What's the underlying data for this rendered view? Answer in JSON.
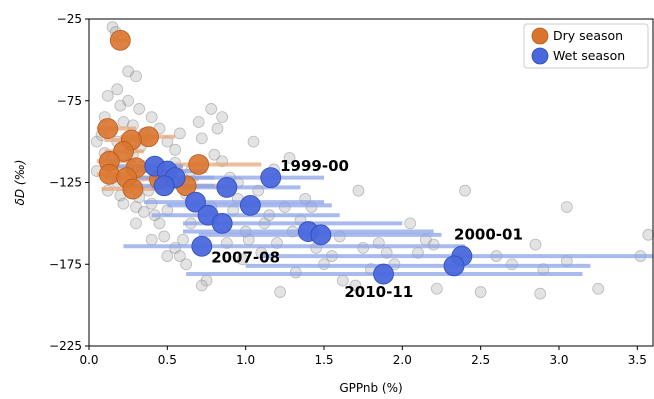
{
  "chart_data": {
    "type": "scatter",
    "xlabel": "GPPnb (%)",
    "ylabel": "δD (‰)",
    "xlim": [
      0.0,
      3.6
    ],
    "ylim": [
      -225,
      -25
    ],
    "xticks": [
      0.0,
      0.5,
      1.0,
      1.5,
      2.0,
      2.5,
      3.0,
      3.5
    ],
    "yticks": [
      -25,
      -75,
      -125,
      -175,
      -225
    ],
    "xtick_labels": [
      "0.0",
      "0.5",
      "1.0",
      "1.5",
      "2.0",
      "2.5",
      "3.0",
      "3.5"
    ],
    "ytick_labels": [
      "−25",
      "−75",
      "−125",
      "−175",
      "−225"
    ],
    "legend_position": "top-right",
    "colors": {
      "background_points": "#b0b0b0",
      "dry": "#d9742e",
      "dry_bar": "#e8a77a",
      "wet": "#4a68dc",
      "wet_bar": "#8ca4e8"
    },
    "series": [
      {
        "name": "Dry season",
        "points": [
          {
            "x": 0.2,
            "y": -38,
            "err": [
              0.15,
              0.25
            ]
          },
          {
            "x": 0.12,
            "y": -92,
            "err": [
              0.05,
              0.3
            ]
          },
          {
            "x": 0.38,
            "y": -97,
            "err": [
              0.2,
              0.55
            ]
          },
          {
            "x": 0.27,
            "y": -99,
            "err": [
              0.1,
              0.4
            ]
          },
          {
            "x": 0.22,
            "y": -106,
            "err": [
              0.1,
              0.35
            ]
          },
          {
            "x": 0.13,
            "y": -112,
            "err": [
              0.05,
              0.3
            ]
          },
          {
            "x": 0.3,
            "y": -116,
            "err": [
              0.15,
              0.6
            ]
          },
          {
            "x": 0.7,
            "y": -114,
            "err": [
              0.55,
              1.1
            ]
          },
          {
            "x": 0.13,
            "y": -120,
            "err": [
              0.05,
              0.25
            ]
          },
          {
            "x": 0.24,
            "y": -122,
            "err": [
              0.1,
              0.5
            ]
          },
          {
            "x": 0.45,
            "y": -123,
            "err": [
              0.3,
              0.7
            ]
          },
          {
            "x": 0.62,
            "y": -127,
            "err": [
              0.5,
              0.9
            ]
          },
          {
            "x": 0.28,
            "y": -129,
            "err": [
              0.08,
              0.45
            ]
          }
        ]
      },
      {
        "name": "Wet season",
        "points": [
          {
            "x": 0.42,
            "y": -115,
            "err": [
              0.1,
              0.6
            ]
          },
          {
            "x": 0.5,
            "y": -118,
            "err": [
              0.3,
              0.75
            ]
          },
          {
            "x": 0.55,
            "y": -122,
            "err": [
              0.3,
              0.8
            ]
          },
          {
            "x": 0.48,
            "y": -127,
            "err": [
              0.25,
              0.8
            ]
          },
          {
            "x": 1.16,
            "y": -122,
            "err": [
              0.45,
              1.5
            ]
          },
          {
            "x": 0.88,
            "y": -128,
            "err": [
              0.4,
              1.35
            ]
          },
          {
            "x": 0.68,
            "y": -137,
            "err": [
              0.35,
              1.5
            ]
          },
          {
            "x": 1.03,
            "y": -139,
            "err": [
              0.5,
              1.55
            ]
          },
          {
            "x": 0.76,
            "y": -145,
            "err": [
              0.4,
              1.6
            ]
          },
          {
            "x": 0.85,
            "y": -150,
            "err": [
              0.6,
              2.0
            ]
          },
          {
            "x": 1.4,
            "y": -155,
            "err": [
              0.6,
              2.2
            ]
          },
          {
            "x": 1.48,
            "y": -157,
            "err": [
              0.7,
              2.25
            ]
          },
          {
            "x": 0.72,
            "y": -164,
            "err": [
              0.22,
              2.4
            ]
          },
          {
            "x": 2.38,
            "y": -170,
            "err": [
              1.1,
              3.6
            ]
          },
          {
            "x": 2.33,
            "y": -176,
            "err": [
              1.0,
              3.2
            ]
          },
          {
            "x": 1.88,
            "y": -181,
            "err": [
              0.62,
              3.15
            ]
          }
        ]
      }
    ],
    "background_points": [
      {
        "x": 0.05,
        "y": -100
      },
      {
        "x": 0.08,
        "y": -96
      },
      {
        "x": 0.1,
        "y": -85
      },
      {
        "x": 0.12,
        "y": -72
      },
      {
        "x": 0.15,
        "y": -30
      },
      {
        "x": 0.17,
        "y": -33
      },
      {
        "x": 0.18,
        "y": -68
      },
      {
        "x": 0.2,
        "y": -78
      },
      {
        "x": 0.22,
        "y": -88
      },
      {
        "x": 0.25,
        "y": -75
      },
      {
        "x": 0.25,
        "y": -57
      },
      {
        "x": 0.28,
        "y": -90
      },
      {
        "x": 0.3,
        "y": -60
      },
      {
        "x": 0.32,
        "y": -80
      },
      {
        "x": 0.35,
        "y": -95
      },
      {
        "x": 0.4,
        "y": -85
      },
      {
        "x": 0.45,
        "y": -92
      },
      {
        "x": 0.5,
        "y": -100
      },
      {
        "x": 0.55,
        "y": -105
      },
      {
        "x": 0.58,
        "y": -95
      },
      {
        "x": 0.15,
        "y": -110
      },
      {
        "x": 0.18,
        "y": -125
      },
      {
        "x": 0.2,
        "y": -133
      },
      {
        "x": 0.22,
        "y": -138
      },
      {
        "x": 0.25,
        "y": -128
      },
      {
        "x": 0.3,
        "y": -140
      },
      {
        "x": 0.32,
        "y": -134
      },
      {
        "x": 0.35,
        "y": -143
      },
      {
        "x": 0.38,
        "y": -130
      },
      {
        "x": 0.4,
        "y": -138
      },
      {
        "x": 0.42,
        "y": -145
      },
      {
        "x": 0.45,
        "y": -150
      },
      {
        "x": 0.5,
        "y": -142
      },
      {
        "x": 0.48,
        "y": -158
      },
      {
        "x": 0.55,
        "y": -165
      },
      {
        "x": 0.6,
        "y": -160
      },
      {
        "x": 0.58,
        "y": -170
      },
      {
        "x": 0.62,
        "y": -175
      },
      {
        "x": 0.65,
        "y": -150
      },
      {
        "x": 0.7,
        "y": -88
      },
      {
        "x": 0.72,
        "y": -98
      },
      {
        "x": 0.78,
        "y": -80
      },
      {
        "x": 0.8,
        "y": -108
      },
      {
        "x": 0.82,
        "y": -92
      },
      {
        "x": 0.85,
        "y": -85
      },
      {
        "x": 0.75,
        "y": -185
      },
      {
        "x": 0.72,
        "y": -188
      },
      {
        "x": 0.9,
        "y": -122
      },
      {
        "x": 0.95,
        "y": -135
      },
      {
        "x": 0.92,
        "y": -142
      },
      {
        "x": 1.0,
        "y": -155
      },
      {
        "x": 1.02,
        "y": -160
      },
      {
        "x": 1.05,
        "y": -100
      },
      {
        "x": 1.1,
        "y": -168
      },
      {
        "x": 1.12,
        "y": -150
      },
      {
        "x": 0.98,
        "y": -172
      },
      {
        "x": 1.2,
        "y": -162
      },
      {
        "x": 1.15,
        "y": -145
      },
      {
        "x": 1.25,
        "y": -140
      },
      {
        "x": 1.28,
        "y": -110
      },
      {
        "x": 1.3,
        "y": -155
      },
      {
        "x": 1.32,
        "y": -180
      },
      {
        "x": 1.22,
        "y": -192
      },
      {
        "x": 1.35,
        "y": -148
      },
      {
        "x": 1.38,
        "y": -135
      },
      {
        "x": 1.42,
        "y": -140
      },
      {
        "x": 1.45,
        "y": -165
      },
      {
        "x": 1.5,
        "y": -175
      },
      {
        "x": 1.55,
        "y": -170
      },
      {
        "x": 1.6,
        "y": -158
      },
      {
        "x": 1.62,
        "y": -185
      },
      {
        "x": 1.7,
        "y": -188
      },
      {
        "x": 1.75,
        "y": -165
      },
      {
        "x": 1.85,
        "y": -162
      },
      {
        "x": 1.8,
        "y": -178
      },
      {
        "x": 1.72,
        "y": -130
      },
      {
        "x": 1.9,
        "y": -168
      },
      {
        "x": 1.95,
        "y": -175
      },
      {
        "x": 2.05,
        "y": -150
      },
      {
        "x": 2.1,
        "y": -168
      },
      {
        "x": 2.15,
        "y": -160
      },
      {
        "x": 2.2,
        "y": -163
      },
      {
        "x": 2.22,
        "y": -190
      },
      {
        "x": 2.35,
        "y": -172
      },
      {
        "x": 2.4,
        "y": -130
      },
      {
        "x": 2.5,
        "y": -192
      },
      {
        "x": 2.6,
        "y": -170
      },
      {
        "x": 2.7,
        "y": -175
      },
      {
        "x": 2.85,
        "y": -163
      },
      {
        "x": 2.9,
        "y": -178
      },
      {
        "x": 2.88,
        "y": -193
      },
      {
        "x": 3.05,
        "y": -140
      },
      {
        "x": 3.05,
        "y": -173
      },
      {
        "x": 3.25,
        "y": -190
      },
      {
        "x": 3.52,
        "y": -170
      },
      {
        "x": 3.57,
        "y": -157
      },
      {
        "x": 0.35,
        "y": -115
      },
      {
        "x": 0.55,
        "y": -113
      },
      {
        "x": 0.65,
        "y": -118
      },
      {
        "x": 0.85,
        "y": -112
      },
      {
        "x": 0.95,
        "y": -125
      },
      {
        "x": 0.1,
        "y": -107
      },
      {
        "x": 0.05,
        "y": -118
      },
      {
        "x": 0.12,
        "y": -130
      },
      {
        "x": 0.3,
        "y": -150
      },
      {
        "x": 0.4,
        "y": -160
      },
      {
        "x": 0.5,
        "y": -170
      },
      {
        "x": 0.78,
        "y": -140
      },
      {
        "x": 1.08,
        "y": -130
      },
      {
        "x": 1.18,
        "y": -117
      },
      {
        "x": 0.28,
        "y": -108
      },
      {
        "x": 0.33,
        "y": -103
      },
      {
        "x": 0.18,
        "y": -100
      },
      {
        "x": 0.62,
        "y": -132
      },
      {
        "x": 0.88,
        "y": -162
      }
    ],
    "annotations": [
      {
        "text": "1999-00",
        "x": 1.22,
        "y": -118
      },
      {
        "text": "2000-01",
        "x": 2.33,
        "y": -160
      },
      {
        "text": "2007-08",
        "x": 0.78,
        "y": -174
      },
      {
        "text": "2010-11",
        "x": 1.63,
        "y": -195
      }
    ],
    "legend": [
      {
        "label": "Dry season",
        "series": "Dry season"
      },
      {
        "label": "Wet season",
        "series": "Wet season"
      }
    ]
  }
}
